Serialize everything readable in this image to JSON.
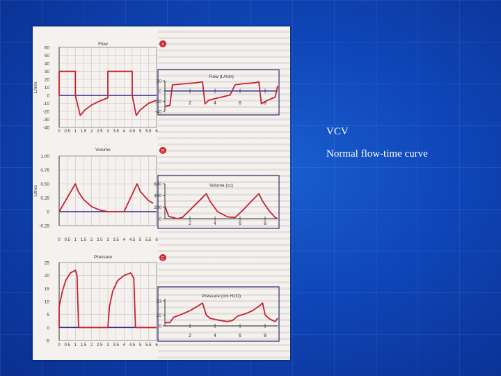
{
  "slide": {
    "title": "VCV",
    "subtitle": "Normal flow-time curve"
  },
  "colors": {
    "curve": "#c8202e",
    "axis": "#1a1a3a",
    "zero_line": "#2a2a8a",
    "badge": "#d4232f"
  },
  "chart_data": [
    {
      "type": "line",
      "title": "Flow",
      "badge": "A",
      "ylabel": "L/min",
      "xlabel": "",
      "ylim": [
        -40,
        60
      ],
      "xlim": [
        0,
        6
      ],
      "y_ticks": [
        "60",
        "50",
        "40",
        "30",
        "20",
        "10",
        "0",
        "-10",
        "-20",
        "-30",
        "-40"
      ],
      "x_ticks": [
        "0",
        "0.5",
        "1",
        "1.5",
        "2",
        "2.5",
        "3",
        "3.5",
        "4",
        "4.5",
        "5",
        "5.5",
        "6"
      ],
      "series": [
        {
          "points": [
            [
              0,
              0
            ],
            [
              0,
              30
            ],
            [
              1,
              30
            ],
            [
              1,
              0
            ],
            [
              1.3,
              -25
            ],
            [
              1.6,
              -18
            ],
            [
              2,
              -12
            ],
            [
              2.5,
              -7
            ],
            [
              3,
              -3
            ],
            [
              3,
              0
            ],
            [
              3,
              30
            ],
            [
              4.5,
              30
            ],
            [
              4.5,
              0
            ],
            [
              4.75,
              -25
            ],
            [
              5,
              -18
            ],
            [
              5.5,
              -10
            ],
            [
              6,
              -6
            ]
          ]
        }
      ],
      "grid": true
    },
    {
      "type": "line",
      "title": "Flow (L/min)",
      "ylim": [
        -40,
        20
      ],
      "xlim": [
        0,
        9
      ],
      "y_ticks": [
        "20",
        "0",
        "-20",
        "-40"
      ],
      "x_ticks": [
        "2",
        "4",
        "6",
        "8"
      ],
      "series": [
        {
          "points": [
            [
              0,
              -30
            ],
            [
              0.4,
              -28
            ],
            [
              0.6,
              12
            ],
            [
              1.5,
              14
            ],
            [
              2.5,
              16
            ],
            [
              3,
              18
            ],
            [
              3.2,
              -25
            ],
            [
              3.5,
              -18
            ],
            [
              4.5,
              -12
            ],
            [
              5.2,
              -8
            ],
            [
              5.6,
              12
            ],
            [
              6.2,
              14
            ],
            [
              7.2,
              16
            ],
            [
              7.5,
              18
            ],
            [
              7.7,
              -25
            ],
            [
              8.2,
              -18
            ],
            [
              8.8,
              -12
            ],
            [
              9,
              10
            ]
          ]
        }
      ],
      "grid": false
    },
    {
      "type": "line",
      "title": "Volume",
      "badge": "B",
      "ylabel": "Litres",
      "ylim": [
        -0.25,
        1
      ],
      "xlim": [
        0,
        6
      ],
      "y_ticks": [
        "1.00",
        "0.75",
        "0.50",
        "0.25",
        "0",
        "-0.25"
      ],
      "x_ticks": [
        "0",
        "0.5",
        "1",
        "1.5",
        "2",
        "2.5",
        "3",
        "3.5",
        "4",
        "4.5",
        "5",
        "5.5",
        "6"
      ],
      "series": [
        {
          "points": [
            [
              0,
              0
            ],
            [
              1,
              0.5
            ],
            [
              1.2,
              0.35
            ],
            [
              1.5,
              0.22
            ],
            [
              2,
              0.09
            ],
            [
              2.5,
              0.03
            ],
            [
              3,
              0
            ],
            [
              4,
              0
            ],
            [
              4.8,
              0.5
            ],
            [
              5,
              0.36
            ],
            [
              5.5,
              0.2
            ],
            [
              5.8,
              0.15
            ]
          ]
        }
      ],
      "grid": true
    },
    {
      "type": "line",
      "title": "Volume (cc)",
      "ylim": [
        0,
        600
      ],
      "xlim": [
        0,
        9
      ],
      "y_ticks": [
        "600",
        "400",
        "200",
        "0"
      ],
      "x_ticks": [
        "2",
        "4",
        "6",
        "8"
      ],
      "series": [
        {
          "points": [
            [
              0,
              220
            ],
            [
              0.3,
              40
            ],
            [
              1,
              0
            ],
            [
              1.4,
              20
            ],
            [
              2,
              150
            ],
            [
              2.8,
              320
            ],
            [
              3.3,
              430
            ],
            [
              3.6,
              300
            ],
            [
              4.2,
              120
            ],
            [
              5,
              30
            ],
            [
              5.6,
              20
            ],
            [
              6.2,
              140
            ],
            [
              7,
              320
            ],
            [
              7.5,
              430
            ],
            [
              7.8,
              300
            ],
            [
              8.3,
              140
            ],
            [
              8.8,
              20
            ],
            [
              9,
              0
            ]
          ]
        }
      ],
      "grid": false
    },
    {
      "type": "line",
      "title": "Pressure",
      "badge": "C",
      "ylabel": "",
      "ylim": [
        -5,
        25
      ],
      "xlim": [
        0,
        6
      ],
      "y_ticks": [
        "25",
        "20",
        "15",
        "10",
        "5",
        "0",
        "-5"
      ],
      "x_ticks": [
        "0",
        "0.5",
        "1",
        "1.5",
        "2",
        "2.5",
        "3",
        "3.5",
        "4",
        "4.5",
        "5",
        "5.5",
        "6"
      ],
      "series": [
        {
          "points": [
            [
              0,
              0
            ],
            [
              0,
              8
            ],
            [
              0.2,
              14
            ],
            [
              0.4,
              18
            ],
            [
              0.7,
              21
            ],
            [
              1,
              22
            ],
            [
              1.1,
              20
            ],
            [
              1.2,
              0
            ],
            [
              3,
              0
            ],
            [
              3.1,
              8
            ],
            [
              3.3,
              14
            ],
            [
              3.6,
              18
            ],
            [
              4,
              20
            ],
            [
              4.4,
              21
            ],
            [
              4.6,
              19
            ],
            [
              4.7,
              0
            ],
            [
              6,
              0
            ]
          ]
        }
      ],
      "grid": true
    },
    {
      "type": "line",
      "title": "Pressure (cm H2O)",
      "ylim": [
        0,
        25
      ],
      "xlim": [
        0,
        9
      ],
      "y_ticks": [
        "23",
        "10",
        "0"
      ],
      "x_ticks": [
        "2",
        "4",
        "6",
        "8"
      ],
      "series": [
        {
          "points": [
            [
              0,
              3
            ],
            [
              0.4,
              3
            ],
            [
              0.7,
              8
            ],
            [
              1.2,
              10
            ],
            [
              2,
              14
            ],
            [
              2.6,
              18
            ],
            [
              3,
              21
            ],
            [
              3.3,
              10
            ],
            [
              3.6,
              7
            ],
            [
              4.4,
              5
            ],
            [
              5,
              4
            ],
            [
              5.4,
              5
            ],
            [
              5.8,
              9
            ],
            [
              6.4,
              11
            ],
            [
              7,
              14
            ],
            [
              7.5,
              18
            ],
            [
              7.8,
              21
            ],
            [
              8,
              10
            ],
            [
              8.4,
              6
            ],
            [
              8.8,
              4
            ],
            [
              9,
              7
            ]
          ]
        }
      ],
      "grid": false
    }
  ]
}
